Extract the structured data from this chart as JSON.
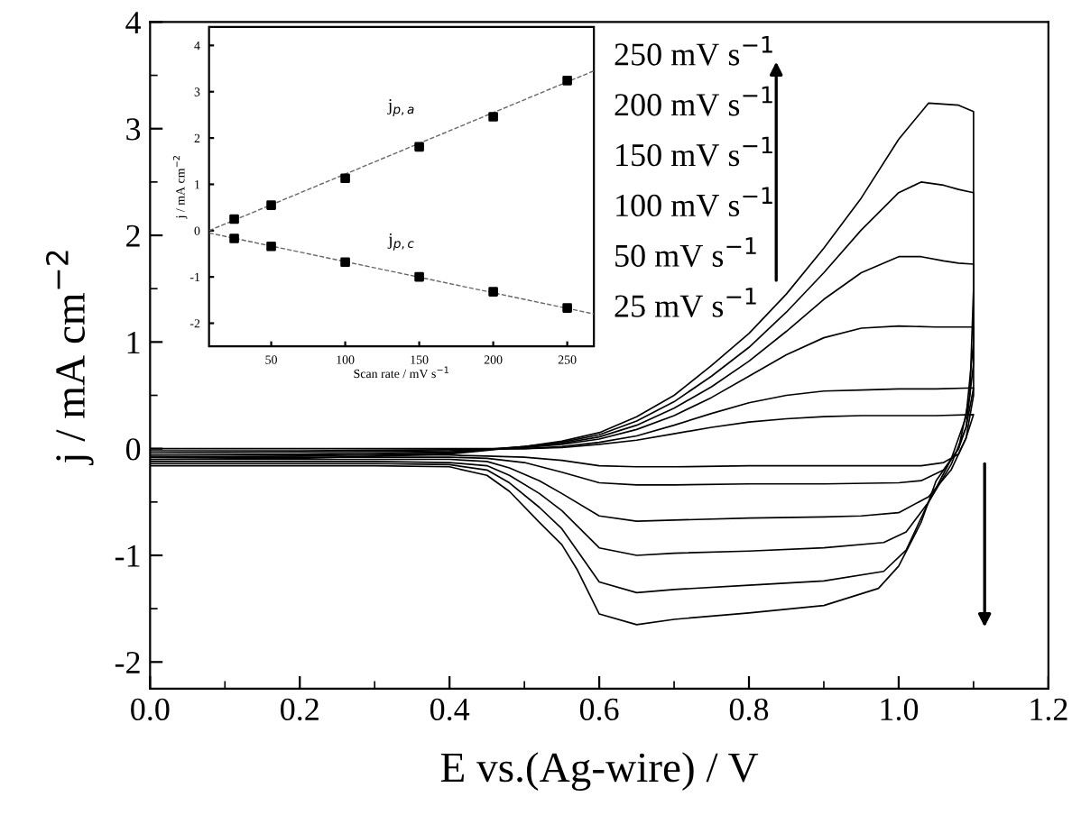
{
  "chart_data": [
    {
      "type": "line",
      "xlabel": "E vs.(Ag-wire) / V",
      "ylabel": "j / mA cm$^{−2}$",
      "xlim": [
        0,
        1.2
      ],
      "ylim": [
        -2.25,
        4
      ],
      "xticks": [
        {
          "value": 0,
          "label": "0.0"
        },
        {
          "value": 0.1,
          "label": null
        },
        {
          "value": 0.2,
          "label": "0.2"
        },
        {
          "value": 0.3,
          "label": null
        },
        {
          "value": 0.4,
          "label": "0.4"
        },
        {
          "value": 0.5,
          "label": null
        },
        {
          "value": 0.6,
          "label": "0.6"
        },
        {
          "value": 0.7,
          "label": null
        },
        {
          "value": 0.8,
          "label": "0.8"
        },
        {
          "value": 0.9,
          "label": null
        },
        {
          "value": 1.0,
          "label": "1.0"
        },
        {
          "value": 1.1,
          "label": null
        },
        {
          "value": 1.2,
          "label": "1.2"
        }
      ],
      "yticks": [
        -2,
        {
          "value": -1.5,
          "label": null
        },
        -1,
        {
          "value": -0.5,
          "label": null
        },
        0,
        {
          "value": 0.5,
          "label": null
        },
        1,
        {
          "value": 1.5,
          "label": null
        },
        2,
        {
          "value": 2.5,
          "label": null
        },
        3,
        {
          "value": 3.5,
          "label": null
        },
        4
      ],
      "grid": false,
      "annotations": [
        "250 mV s$^{−1}$",
        "200 mV s$^{−1}$",
        "150 mV s$^{−1}$",
        "100 mV s$^{−1}$",
        "50 mV s$^{−1}$",
        "25 mV s$^{−1}$"
      ],
      "series": [
        {
          "color": "#000000",
          "x": [
            0,
            0.2,
            0.4,
            0.5,
            0.55,
            0.6,
            0.65,
            0.7,
            0.75,
            0.8,
            0.85,
            0.9,
            0.95,
            1.0,
            1.04,
            1.08,
            1.1,
            1.1,
            1.095,
            1.08,
            1.05,
            1.03,
            1.0,
            0.973,
            0.9,
            0.8,
            0.7,
            0.65,
            0.6,
            0.571,
            0.55,
            0.52,
            0.48,
            0.45,
            0.4,
            0.3,
            0.2,
            0.0
          ],
          "values": [
            -0.1,
            -0.09,
            -0.05,
            0.02,
            0.07,
            0.15,
            0.3,
            0.5,
            0.78,
            1.08,
            1.45,
            1.88,
            2.35,
            2.9,
            3.24,
            3.22,
            3.16,
            1.5,
            0.5,
            0.0,
            -0.3,
            -0.69,
            -1.1,
            -1.31,
            -1.47,
            -1.54,
            -1.6,
            -1.65,
            -1.55,
            -1.14,
            -0.9,
            -0.69,
            -0.4,
            -0.25,
            -0.17,
            -0.16,
            -0.16,
            -0.16
          ]
        },
        {
          "color": "#000000",
          "x": [
            0,
            0.2,
            0.4,
            0.5,
            0.55,
            0.6,
            0.65,
            0.7,
            0.75,
            0.8,
            0.85,
            0.9,
            0.95,
            1.0,
            1.03,
            1.06,
            1.08,
            1.1,
            1.1,
            1.09,
            1.07,
            1.04,
            1.01,
            0.98,
            0.9,
            0.8,
            0.7,
            0.65,
            0.6,
            0.57,
            0.55,
            0.52,
            0.48,
            0.45,
            0.4,
            0.3,
            0.2,
            0.0
          ],
          "values": [
            -0.08,
            -0.07,
            -0.04,
            0.02,
            0.06,
            0.13,
            0.26,
            0.44,
            0.68,
            0.95,
            1.28,
            1.65,
            2.05,
            2.4,
            2.5,
            2.47,
            2.43,
            2.4,
            1.0,
            0.3,
            -0.1,
            -0.5,
            -0.95,
            -1.15,
            -1.24,
            -1.28,
            -1.32,
            -1.35,
            -1.25,
            -0.95,
            -0.75,
            -0.55,
            -0.32,
            -0.2,
            -0.15,
            -0.14,
            -0.14,
            -0.14
          ]
        },
        {
          "color": "#000000",
          "x": [
            0,
            0.2,
            0.4,
            0.5,
            0.55,
            0.6,
            0.65,
            0.7,
            0.75,
            0.8,
            0.85,
            0.9,
            0.95,
            1.0,
            1.03,
            1.06,
            1.08,
            1.1,
            1.1,
            1.09,
            1.07,
            1.04,
            1.01,
            0.98,
            0.9,
            0.8,
            0.7,
            0.65,
            0.6,
            0.57,
            0.55,
            0.52,
            0.48,
            0.45,
            0.4,
            0.3,
            0.2,
            0.0
          ],
          "values": [
            -0.06,
            -0.05,
            -0.03,
            0.02,
            0.05,
            0.11,
            0.22,
            0.38,
            0.58,
            0.82,
            1.1,
            1.4,
            1.65,
            1.8,
            1.8,
            1.76,
            1.74,
            1.73,
            0.8,
            0.2,
            -0.15,
            -0.5,
            -0.78,
            -0.88,
            -0.93,
            -0.96,
            -0.98,
            -1.0,
            -0.93,
            -0.72,
            -0.58,
            -0.42,
            -0.25,
            -0.16,
            -0.13,
            -0.12,
            -0.12,
            -0.12
          ]
        },
        {
          "color": "#000000",
          "x": [
            0,
            0.2,
            0.4,
            0.5,
            0.55,
            0.6,
            0.65,
            0.7,
            0.75,
            0.8,
            0.85,
            0.9,
            0.95,
            1.0,
            1.05,
            1.08,
            1.1,
            1.1,
            1.09,
            1.07,
            1.04,
            1.0,
            0.95,
            0.9,
            0.8,
            0.7,
            0.65,
            0.6,
            0.55,
            0.52,
            0.48,
            0.45,
            0.4,
            0.3,
            0.2,
            0.0
          ],
          "values": [
            -0.04,
            -0.03,
            -0.02,
            0.01,
            0.04,
            0.09,
            0.18,
            0.31,
            0.48,
            0.68,
            0.88,
            1.04,
            1.13,
            1.15,
            1.14,
            1.14,
            1.14,
            0.5,
            0.1,
            -0.2,
            -0.45,
            -0.6,
            -0.63,
            -0.64,
            -0.65,
            -0.67,
            -0.68,
            -0.63,
            -0.42,
            -0.3,
            -0.18,
            -0.12,
            -0.1,
            -0.1,
            -0.1,
            -0.1
          ]
        },
        {
          "color": "#000000",
          "x": [
            0,
            0.2,
            0.4,
            0.5,
            0.55,
            0.6,
            0.65,
            0.7,
            0.75,
            0.8,
            0.85,
            0.9,
            0.95,
            1.0,
            1.05,
            1.1,
            1.09,
            1.08,
            1.06,
            1.03,
            1.0,
            0.9,
            0.8,
            0.7,
            0.65,
            0.6,
            0.55,
            0.5,
            0.45,
            0.4,
            0.2,
            0.0
          ],
          "values": [
            -0.02,
            -0.02,
            -0.01,
            0.0,
            0.02,
            0.06,
            0.12,
            0.22,
            0.33,
            0.43,
            0.5,
            0.54,
            0.55,
            0.56,
            0.56,
            0.57,
            0.2,
            0.0,
            -0.2,
            -0.3,
            -0.32,
            -0.33,
            -0.33,
            -0.34,
            -0.34,
            -0.32,
            -0.22,
            -0.13,
            -0.09,
            -0.08,
            -0.08,
            -0.08
          ]
        },
        {
          "color": "#000000",
          "x": [
            0,
            0.2,
            0.4,
            0.5,
            0.55,
            0.6,
            0.65,
            0.7,
            0.75,
            0.8,
            0.85,
            0.9,
            0.95,
            1.0,
            1.05,
            1.1,
            1.09,
            1.08,
            1.06,
            1.03,
            1.0,
            0.9,
            0.8,
            0.7,
            0.65,
            0.6,
            0.55,
            0.5,
            0.45,
            0.4,
            0.2,
            0.0
          ],
          "values": [
            0.0,
            0.0,
            0.0,
            0.0,
            0.01,
            0.04,
            0.08,
            0.14,
            0.2,
            0.25,
            0.28,
            0.3,
            0.31,
            0.31,
            0.31,
            0.32,
            0.1,
            -0.05,
            -0.13,
            -0.16,
            -0.16,
            -0.16,
            -0.16,
            -0.17,
            -0.17,
            -0.16,
            -0.11,
            -0.08,
            -0.07,
            -0.06,
            -0.06,
            -0.06
          ]
        }
      ]
    },
    {
      "type": "scatter",
      "xlabel": "Scan rate / mV s$^{−1}$",
      "ylabel": "j / mA cm$^{−2}$",
      "xlim": [
        8,
        268
      ],
      "ylim": [
        -2.5,
        4.4
      ],
      "xticks": [
        50,
        100,
        150,
        200,
        250
      ],
      "yticks": [
        -2,
        -1,
        0,
        1,
        2,
        3,
        4
      ],
      "grid": false,
      "annotations": [
        "j$_{p,a}$",
        "j$_{p,c}$"
      ],
      "x": [
        25,
        50,
        100,
        150,
        200,
        250
      ],
      "series": [
        {
          "color": "#000000",
          "marker": "square",
          "values": [
            0.25,
            0.55,
            1.13,
            1.81,
            2.46,
            3.24
          ]
        },
        {
          "color": "#000000",
          "marker": "square",
          "values": [
            -0.17,
            -0.34,
            -0.68,
            -1.0,
            -1.32,
            -1.67
          ]
        },
        {
          "type": "line",
          "color": "#666666",
          "line_style": "dashed",
          "x": [
            8,
            268
          ],
          "values": [
            0.0,
            3.45
          ]
        },
        {
          "type": "line",
          "color": "#666666",
          "line_style": "dashed",
          "x": [
            8,
            268
          ],
          "values": [
            -0.05,
            -1.8
          ]
        }
      ]
    }
  ]
}
